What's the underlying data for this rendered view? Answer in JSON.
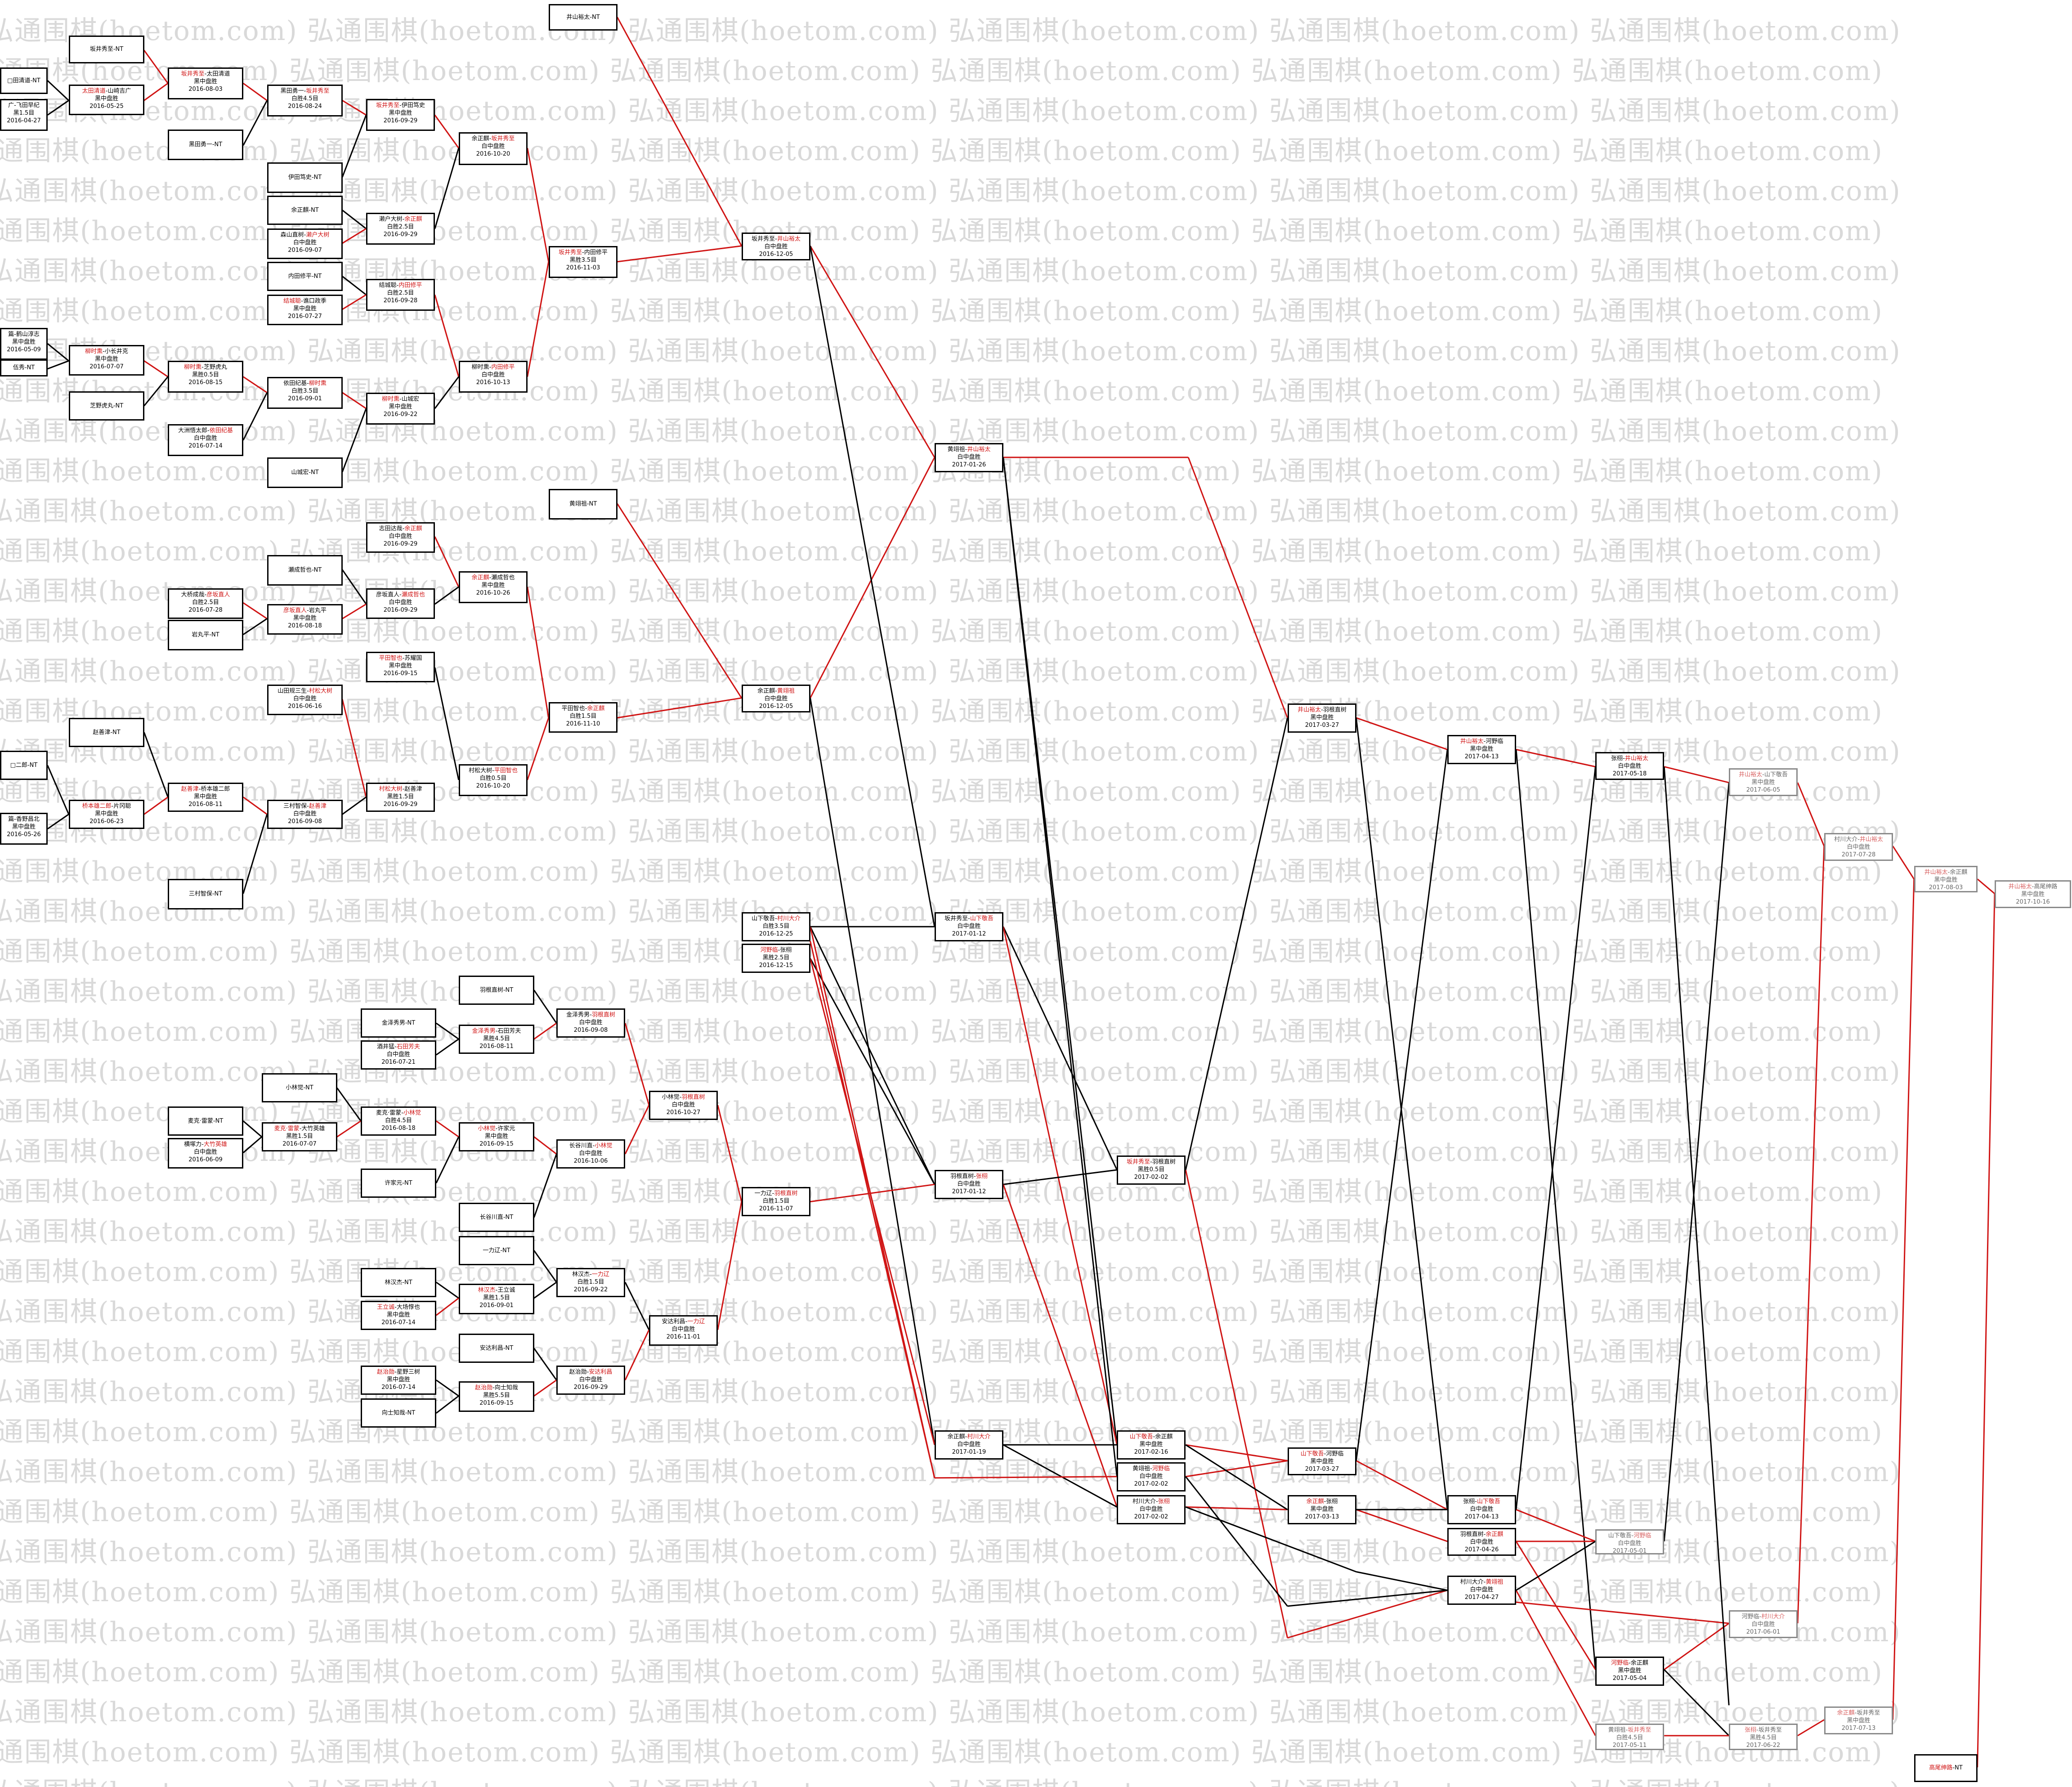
{
  "watermark": "弘通围棋(hoetom.com)",
  "colors": {
    "winner_line": "#d01414",
    "loser_line": "#000000",
    "winner_text": "#d01414",
    "watermark": "#d9d9d9"
  },
  "boxes": [
    {
      "id": "b01",
      "l1": [
        [
          "",
          ""
        ],
        [
          "",
          "井山裕太-NT"
        ]
      ]
    },
    {
      "id": "b02",
      "l1": [
        [
          "",
          "",
          "坂井秀至-NT"
        ]
      ]
    },
    {
      "id": "b03",
      "l1": [
        [
          "r",
          "坂井秀至"
        ],
        [
          "",
          "-太田清道"
        ]
      ],
      "l2": "黑中盘胜",
      "l3": "2016-08-03"
    },
    {
      "id": "b04",
      "l1": [
        [
          "",
          "□田清道-NT"
        ]
      ]
    },
    {
      "id": "b05",
      "l1": [
        [
          "r",
          "太田清道"
        ],
        [
          "",
          "-山崎吉广"
        ]
      ],
      "l2": "黑中盘胜",
      "l3": "2016-05-25"
    },
    {
      "id": "b06",
      "l1": [
        [
          "",
          "广-飞田早纪"
        ]
      ],
      "l2": "黑1.5目",
      "l3": "2016-04-27"
    },
    {
      "id": "b07",
      "l1": [
        [
          "",
          "黑田勇一-NT"
        ]
      ]
    },
    {
      "id": "b08",
      "l1": [
        [
          "",
          "黑田勇一-"
        ],
        [
          "r",
          "坂井秀至"
        ]
      ],
      "l2": "白胜4.5目",
      "l3": "2016-08-24"
    },
    {
      "id": "b09",
      "l1": [
        [
          "r",
          "坂井秀至"
        ],
        [
          "",
          "-伊田笃史"
        ]
      ],
      "l2": "黑中盘胜",
      "l3": "2016-09-29"
    },
    {
      "id": "b10",
      "l1": [
        [
          "",
          "伊田笃史-NT"
        ]
      ]
    },
    {
      "id": "b11",
      "l1": [
        [
          "",
          "余正麒-NT"
        ]
      ]
    },
    {
      "id": "b12",
      "l1": [
        [
          "",
          "森山直树-"
        ],
        [
          "r",
          "濑户大树"
        ]
      ],
      "l2": "白中盘胜",
      "l3": "2016-09-07"
    },
    {
      "id": "b13",
      "l1": [
        [
          "",
          "濑户大树-"
        ],
        [
          "r",
          "余正麒"
        ]
      ],
      "l2": "白胜2.5目",
      "l3": "2016-09-29"
    },
    {
      "id": "b14",
      "l1": [
        [
          "",
          "余正麒-"
        ],
        [
          "r",
          "坂井秀至"
        ]
      ],
      "l2": "白中盘胜",
      "l3": "2016-10-20"
    },
    {
      "id": "b15",
      "l1": [
        [
          "r",
          "坂井秀至"
        ],
        [
          "",
          "-内田修平"
        ]
      ],
      "l2": "黑胜3.5目",
      "l3": "2016-11-03"
    },
    {
      "id": "b16",
      "l1": [
        [
          "",
          "内田修平-NT"
        ]
      ]
    },
    {
      "id": "b17",
      "l1": [
        [
          "r",
          "结城聪"
        ],
        [
          "",
          "-谯口政季"
        ]
      ],
      "l2": "黑中盘胜",
      "l3": "2016-07-27"
    },
    {
      "id": "b18",
      "l1": [
        [
          "",
          "结城聪-"
        ],
        [
          "r",
          "内田修平"
        ]
      ],
      "l2": "白胜2.5目",
      "l3": "2016-09-28"
    },
    {
      "id": "b19",
      "l1": [
        [
          "",
          "坂井秀至-"
        ],
        [
          "r",
          "井山裕太"
        ]
      ],
      "l2": "白中盘胜",
      "l3": "2016-12-05"
    },
    {
      "id": "b20",
      "l1": [
        [
          "",
          "篇-鹤山淳志"
        ]
      ],
      "l2": "黑中盘胜",
      "l3": "2016-05-09"
    },
    {
      "id": "b21",
      "l1": [
        [
          "",
          "伍秀-NT"
        ]
      ]
    },
    {
      "id": "b22",
      "l1": [
        [
          "r",
          "柳时熏"
        ],
        [
          "",
          "-小长井克"
        ]
      ],
      "l2": "黑中盘胜",
      "l3": "2016-07-07"
    },
    {
      "id": "b23",
      "l1": [
        [
          "",
          "芝野虎丸-NT"
        ]
      ]
    },
    {
      "id": "b24",
      "l1": [
        [
          "r",
          "柳时熏"
        ],
        [
          "",
          "-芝野虎丸"
        ]
      ],
      "l2": "黑胜0.5目",
      "l3": "2016-08-15"
    },
    {
      "id": "b25",
      "l1": [
        [
          "",
          "大洲悟太郎-"
        ],
        [
          "r",
          "依田纪基"
        ]
      ],
      "l2": "白中盘胜",
      "l3": "2016-07-14"
    },
    {
      "id": "b26",
      "l1": [
        [
          "",
          "依田纪基-"
        ],
        [
          "r",
          "柳时熏"
        ]
      ],
      "l2": "白胜3.5目",
      "l3": "2016-09-01"
    },
    {
      "id": "b27",
      "l1": [
        [
          "r",
          "柳时熏"
        ],
        [
          "",
          "-山城宏"
        ]
      ],
      "l2": "黑中盘胜",
      "l3": "2016-09-22"
    },
    {
      "id": "b28",
      "l1": [
        [
          "",
          "山城宏-NT"
        ]
      ]
    },
    {
      "id": "b29",
      "l1": [
        [
          "",
          "柳时熏-"
        ],
        [
          "r",
          "内田修平"
        ]
      ],
      "l2": "白中盘胜",
      "l3": "2016-10-13"
    },
    {
      "id": "b30",
      "l1": [
        [
          "",
          "黄翊祖-NT"
        ]
      ]
    },
    {
      "id": "b31",
      "l1": [
        [
          "",
          "志田达哉-"
        ],
        [
          "r",
          "余正麒"
        ]
      ],
      "l2": "白中盘胜",
      "l3": "2016-09-29"
    },
    {
      "id": "b32",
      "l1": [
        [
          "",
          "瀬成哲也-NT"
        ]
      ]
    },
    {
      "id": "b33",
      "l1": [
        [
          "",
          "大桥成哉-"
        ],
        [
          "r",
          "彦坂直人"
        ]
      ],
      "l2": "白胜2.5目",
      "l3": "2016-07-28"
    },
    {
      "id": "b34",
      "l1": [
        [
          "",
          "岩丸平-NT"
        ]
      ]
    },
    {
      "id": "b35",
      "l1": [
        [
          "r",
          "彦坂直人"
        ],
        [
          "",
          "-岩丸平"
        ]
      ],
      "l2": "黑中盘胜",
      "l3": "2016-08-18"
    },
    {
      "id": "b36",
      "l1": [
        [
          "",
          "彦坂直人-"
        ],
        [
          "r",
          "瀬成哲也"
        ]
      ],
      "l2": "白中盘胜",
      "l3": "2016-09-29"
    },
    {
      "id": "b37",
      "l1": [
        [
          "r",
          "余正麒"
        ],
        [
          "",
          "-瀬成哲也"
        ]
      ],
      "l2": "黑中盘胜",
      "l3": "2016-10-26"
    },
    {
      "id": "b38",
      "l1": [
        [
          "r",
          "平田智也"
        ],
        [
          "",
          "-苏耀国"
        ]
      ],
      "l2": "黑中盘胜",
      "l3": "2016-09-15"
    },
    {
      "id": "b39",
      "l1": [
        [
          "",
          "平田智也-"
        ],
        [
          "r",
          "余正麒"
        ]
      ],
      "l2": "白胜1.5目",
      "l3": "2016-11-10"
    },
    {
      "id": "b40",
      "l1": [
        [
          "",
          "余正麒-"
        ],
        [
          "r",
          "黄翊祖"
        ]
      ],
      "l2": "白中盘胜",
      "l3": "2016-12-05"
    },
    {
      "id": "b41",
      "l1": [
        [
          "",
          "山田规三生-"
        ],
        [
          "r",
          "村松大树"
        ]
      ],
      "l2": "白中盘胜",
      "l3": "2016-06-16"
    },
    {
      "id": "b42",
      "l1": [
        [
          "r",
          "村松大树"
        ],
        [
          "",
          "-赵善津"
        ]
      ],
      "l2": "黑胜1.5目",
      "l3": "2016-09-29"
    },
    {
      "id": "b43",
      "l1": [
        [
          "",
          "村松大树-"
        ],
        [
          "r",
          "平田智也"
        ]
      ],
      "l2": "白胜0.5目",
      "l3": "2016-10-20"
    },
    {
      "id": "b44",
      "l1": [
        [
          "",
          "赵善津-NT"
        ]
      ]
    },
    {
      "id": "b45",
      "l1": [
        [
          "",
          "□二郎-NT"
        ]
      ]
    },
    {
      "id": "b46",
      "l1": [
        [
          "r",
          "赵善津"
        ],
        [
          "",
          "-桥本雄二郎"
        ]
      ],
      "l2": "黑中盘胜",
      "l3": "2016-08-11"
    },
    {
      "id": "b47",
      "l1": [
        [
          "r",
          "桥本雄二郎"
        ],
        [
          "",
          "-片冈聪"
        ]
      ],
      "l2": "黑中盘胜",
      "l3": "2016-06-23"
    },
    {
      "id": "b48",
      "l1": [
        [
          "",
          "篇-香野昌北"
        ]
      ],
      "l2": "黑中盘胜",
      "l3": "2016-05-26"
    },
    {
      "id": "b49",
      "l1": [
        [
          "",
          "三村智保-"
        ],
        [
          "r",
          "赵善津"
        ]
      ],
      "l2": "白中盘胜",
      "l3": "2016-09-08"
    },
    {
      "id": "b50",
      "l1": [
        [
          "",
          "三村智保-NT"
        ]
      ]
    },
    {
      "id": "b51",
      "l1": [
        [
          "",
          "山下敬吾-"
        ],
        [
          "r",
          "村川大介"
        ]
      ],
      "l2": "白胜3.5目",
      "l3": "2016-12-25"
    },
    {
      "id": "b52",
      "l1": [
        [
          "r",
          "河野临"
        ],
        [
          "",
          "-张栩"
        ]
      ],
      "l2": "黑胜2.5目",
      "l3": "2016-12-15"
    },
    {
      "id": "b53",
      "l1": [
        [
          "",
          "黄翊祖-"
        ],
        [
          "r",
          "井山裕太"
        ]
      ],
      "l2": "白中盘胜",
      "l3": "2017-01-26"
    },
    {
      "id": "b54",
      "l1": [
        [
          "",
          "坂井秀至-"
        ],
        [
          "r",
          "山下敬吾"
        ]
      ],
      "l2": "白中盘胜",
      "l3": "2017-01-12"
    },
    {
      "id": "b55",
      "l1": [
        [
          "",
          "羽根直树-NT"
        ]
      ]
    },
    {
      "id": "b56",
      "l1": [
        [
          "",
          "金泽秀男-NT"
        ]
      ]
    },
    {
      "id": "b57",
      "l1": [
        [
          "",
          "金泽秀男-"
        ],
        [
          "r",
          "羽根直树"
        ]
      ],
      "l2": "白中盘胜",
      "l3": "2016-09-08"
    },
    {
      "id": "b58",
      "l1": [
        [
          "r",
          "金泽秀男"
        ],
        [
          "",
          "-石田芳夫"
        ]
      ],
      "l2": "黑胜4.5目",
      "l3": "2016-08-11"
    },
    {
      "id": "b59",
      "l1": [
        [
          "",
          "酒井猛-"
        ],
        [
          "r",
          "石田芳夫"
        ]
      ],
      "l2": "白中盘胜",
      "l3": "2016-07-21"
    },
    {
      "id": "b60",
      "l1": [
        [
          "",
          "小林觉-"
        ],
        [
          "r",
          "羽根直树"
        ]
      ],
      "l2": "白中盘胜",
      "l3": "2016-10-27"
    },
    {
      "id": "b61",
      "l1": [
        [
          "",
          "小林觉-NT"
        ]
      ]
    },
    {
      "id": "b62",
      "l1": [
        [
          "",
          "麦克·雷蒙-NT"
        ]
      ]
    },
    {
      "id": "b63",
      "l1": [
        [
          "",
          "麦克·雷蒙-"
        ],
        [
          "r",
          "小林觉"
        ]
      ],
      "l2": "白胜4.5目",
      "l3": "2016-08-18"
    },
    {
      "id": "b64",
      "l1": [
        [
          "r",
          "麦克·雷蒙"
        ],
        [
          "",
          "-大竹英雄"
        ]
      ],
      "l2": "黑胜1.5目",
      "l3": "2016-07-07"
    },
    {
      "id": "b65",
      "l1": [
        [
          "",
          "横塚力-"
        ],
        [
          "r",
          "大竹英雄"
        ]
      ],
      "l2": "白中盘胜",
      "l3": "2016-06-09"
    },
    {
      "id": "b66",
      "l1": [
        [
          "r",
          "小林觉"
        ],
        [
          "",
          "-许家元"
        ]
      ],
      "l2": "黑中盘胜",
      "l3": "2016-09-15"
    },
    {
      "id": "b67",
      "l1": [
        [
          "",
          "许家元-NT"
        ]
      ]
    },
    {
      "id": "b68",
      "l1": [
        [
          "",
          "长谷川直-"
        ],
        [
          "r",
          "小林觉"
        ]
      ],
      "l2": "白中盘胜",
      "l3": "2016-10-06"
    },
    {
      "id": "b69",
      "l1": [
        [
          "",
          "长谷川直-NT"
        ]
      ]
    },
    {
      "id": "b70",
      "l1": [
        [
          "",
          "一力辽-NT"
        ]
      ]
    },
    {
      "id": "b71",
      "l1": [
        [
          "",
          "一力辽-"
        ],
        [
          "r",
          "羽根直树"
        ]
      ],
      "l2": "白胜1.5目",
      "l3": "2016-11-07"
    },
    {
      "id": "b72",
      "l1": [
        [
          "",
          "林汉杰-NT"
        ]
      ]
    },
    {
      "id": "b73",
      "l1": [
        [
          "r",
          "林汉杰"
        ],
        [
          "",
          "-王立诚"
        ]
      ],
      "l2": "黑胜1.5目",
      "l3": "2016-09-01"
    },
    {
      "id": "b74",
      "l1": [
        [
          "r",
          "王立诚"
        ],
        [
          "",
          "-大场惇也"
        ]
      ],
      "l2": "黑中盘胜",
      "l3": "2016-07-14"
    },
    {
      "id": "b75",
      "l1": [
        [
          "",
          "林汉杰-"
        ],
        [
          "r",
          "一力辽"
        ]
      ],
      "l2": "白胜1.5目",
      "l3": "2016-09-22"
    },
    {
      "id": "b76",
      "l1": [
        [
          "",
          "安达利昌-"
        ],
        [
          "r",
          "一力辽"
        ]
      ],
      "l2": "白中盘胜",
      "l3": "2016-11-01"
    },
    {
      "id": "b77",
      "l1": [
        [
          "",
          "安达利昌-NT"
        ]
      ]
    },
    {
      "id": "b78",
      "l1": [
        [
          "",
          "赵治勋-"
        ],
        [
          "r",
          "安达利昌"
        ]
      ],
      "l2": "白中盘胜",
      "l3": "2016-09-29"
    },
    {
      "id": "b79",
      "l1": [
        [
          "r",
          "赵治勋"
        ],
        [
          "",
          "-星野三树"
        ]
      ],
      "l2": "黑中盘胜",
      "l3": "2016-07-14"
    },
    {
      "id": "b80",
      "l1": [
        [
          "r",
          "赵治勋"
        ],
        [
          "",
          "-向士知哉"
        ]
      ],
      "l2": "黑胜5.5目",
      "l3": "2016-09-15"
    },
    {
      "id": "b81",
      "l1": [
        [
          "",
          "向士知哉-NT"
        ]
      ]
    },
    {
      "id": "b82",
      "l1": [
        [
          "",
          "羽根直树-"
        ],
        [
          "r",
          "张栩"
        ]
      ],
      "l2": "白中盘胜",
      "l3": "2017-01-12"
    },
    {
      "id": "b83",
      "l1": [
        [
          "",
          "余正麒-"
        ],
        [
          "r",
          "村川大介"
        ]
      ],
      "l2": "白中盘胜",
      "l3": "2017-01-19"
    },
    {
      "id": "b84",
      "l1": [
        [
          "r",
          "坂井秀至"
        ],
        [
          "",
          "-羽根直树"
        ]
      ],
      "l2": "黑胜0.5目",
      "l3": "2017-02-02"
    },
    {
      "id": "b85",
      "l1": [
        [
          "r",
          "山下敬吾"
        ],
        [
          "",
          "-余正麒"
        ]
      ],
      "l2": "黑中盘胜",
      "l3": "2017-02-16"
    },
    {
      "id": "b86",
      "l1": [
        [
          "",
          "黄翊祖-"
        ],
        [
          "r",
          "河野临"
        ]
      ],
      "l2": "白中盘胜",
      "l3": "2017-02-02"
    },
    {
      "id": "b87",
      "l1": [
        [
          "",
          "村川大介-"
        ],
        [
          "r",
          "张栩"
        ]
      ],
      "l2": "白中盘胜",
      "l3": "2017-02-02"
    },
    {
      "id": "b88",
      "l1": [
        [
          "r",
          "井山裕太"
        ],
        [
          "",
          "-羽根直树"
        ]
      ],
      "l2": "黑中盘胜",
      "l3": "2017-03-27"
    },
    {
      "id": "b89",
      "l1": [
        [
          "r",
          "山下敬吾"
        ],
        [
          "",
          "-河野临"
        ]
      ],
      "l2": "黑中盘胜",
      "l3": "2017-03-27"
    },
    {
      "id": "b90",
      "l1": [
        [
          "r",
          "余正麒"
        ],
        [
          "",
          "-张栩"
        ]
      ],
      "l2": "黑中盘胜",
      "l3": "2017-03-13"
    },
    {
      "id": "b91",
      "l1": [
        [
          "r",
          "井山裕太"
        ],
        [
          "",
          "-河野临"
        ]
      ],
      "l2": "黑中盘胜",
      "l3": "2017-04-13"
    },
    {
      "id": "b92",
      "l1": [
        [
          "",
          "张栩-"
        ],
        [
          "r",
          "山下敬吾"
        ]
      ],
      "l2": "白中盘胜",
      "l3": "2017-04-13"
    },
    {
      "id": "b93",
      "l1": [
        [
          "",
          "羽根直树-"
        ],
        [
          "r",
          "余正麒"
        ]
      ],
      "l2": "白中盘胜",
      "l3": "2017-04-26"
    },
    {
      "id": "b94",
      "l1": [
        [
          "",
          "村川大介-"
        ],
        [
          "r",
          "黄翊祖"
        ]
      ],
      "l2": "白中盘胜",
      "l3": "2017-04-27"
    },
    {
      "id": "b95",
      "l1": [
        [
          "",
          "张栩-"
        ],
        [
          "r",
          "井山裕太"
        ]
      ],
      "l2": "白中盘胜",
      "l3": "2017-05-18"
    },
    {
      "id": "b96",
      "l1": [
        [
          "",
          "山下敬吾-"
        ],
        [
          "r",
          "河野临"
        ]
      ],
      "l2": "白中盘胜",
      "l3": "2017-05-01",
      "grey": true
    },
    {
      "id": "b97",
      "l1": [
        [
          "r",
          "河野临"
        ],
        [
          "",
          "-余正麒"
        ]
      ],
      "l2": "黑中盘胜",
      "l3": "2017-05-04"
    },
    {
      "id": "b98",
      "l1": [
        [
          "",
          "黄翊祖-"
        ],
        [
          "r",
          "坂井秀至"
        ]
      ],
      "l2": "白胜4.5目",
      "l3": "2017-05-11",
      "grey": true
    },
    {
      "id": "b99",
      "l1": [
        [
          "r",
          "井山裕太"
        ],
        [
          "",
          "-山下敬吾"
        ]
      ],
      "l2": "黑中盘胜",
      "l3": "2017-06-05",
      "grey": true
    },
    {
      "id": "c01",
      "l1": [
        [
          "",
          "河野临-"
        ],
        [
          "r",
          "村川大介"
        ]
      ],
      "l2": "白中盘胜",
      "l3": "2017-06-01",
      "grey": true
    },
    {
      "id": "c02",
      "l1": [
        [
          "r",
          "张栩"
        ],
        [
          "",
          "-坂井秀至"
        ]
      ],
      "l2": "黑胜4.5目",
      "l3": "2017-06-22",
      "grey": true
    },
    {
      "id": "c03",
      "l1": [
        [
          "",
          "村川大介-"
        ],
        [
          "r",
          "井山裕太"
        ]
      ],
      "l2": "白中盘胜",
      "l3": "2017-07-28",
      "grey": true
    },
    {
      "id": "c04",
      "l1": [
        [
          "r",
          "余正麒"
        ],
        [
          "",
          "-坂井秀至"
        ]
      ],
      "l2": "黑中盘胜",
      "l3": "2017-07-13",
      "grey": true
    },
    {
      "id": "c05",
      "l1": [
        [
          "r",
          "井山裕太"
        ],
        [
          "",
          "-余正麒"
        ]
      ],
      "l2": "黑中盘胜",
      "l3": "2017-08-03",
      "grey": true
    },
    {
      "id": "c06",
      "l1": [
        [
          "r",
          "井山裕太"
        ],
        [
          "",
          "-高尾绅路"
        ]
      ],
      "l2": "黑中盘胜",
      "l3": "2017-10-16",
      "grey": true
    },
    {
      "id": "c07",
      "l1": [
        [
          "r",
          "高尾绅路"
        ],
        [
          "",
          "-NT"
        ]
      ]
    }
  ]
}
